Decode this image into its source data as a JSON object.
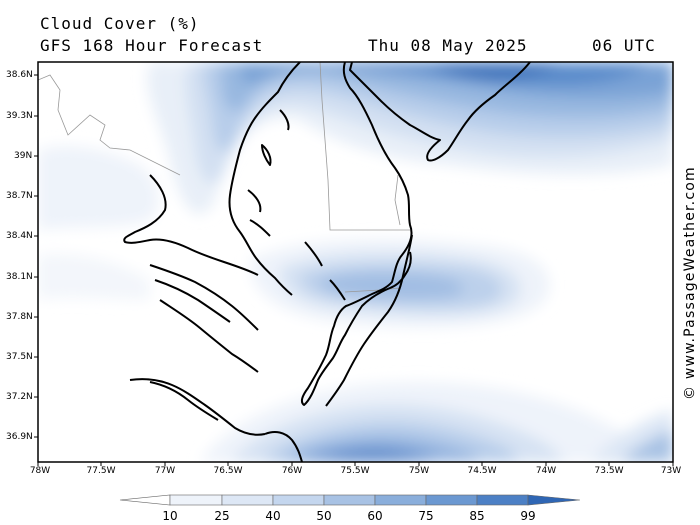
{
  "header": {
    "title": "Cloud Cover (%)",
    "model": "GFS 168 Hour Forecast",
    "date": "Thu 08 May 2025",
    "time": "06 UTC"
  },
  "credit": "© www.PassageWeather.com",
  "map": {
    "lat_labels": [
      "38.6N",
      "39.3N",
      "39N",
      "38.7N",
      "38.4N",
      "38.1N",
      "37.8N",
      "37.5N",
      "37.2N",
      "36.9N"
    ],
    "lon_labels": [
      "78W",
      "77.5W",
      "77W",
      "76.5W",
      "76W",
      "75.5W",
      "75W",
      "74.5W",
      "74W",
      "73.5W",
      "73W"
    ],
    "colors": {
      "land_outline": "#000000",
      "state_border": "#999999",
      "frame": "#000000"
    }
  },
  "colorbar": {
    "levels": [
      "10",
      "25",
      "40",
      "50",
      "60",
      "75",
      "85",
      "99"
    ],
    "colors": [
      "#ffffff",
      "#eef3fa",
      "#dde7f5",
      "#c4d6ee",
      "#a8c2e4",
      "#8aaedb",
      "#6b98d1",
      "#4c80c5",
      "#2f66b4"
    ]
  }
}
